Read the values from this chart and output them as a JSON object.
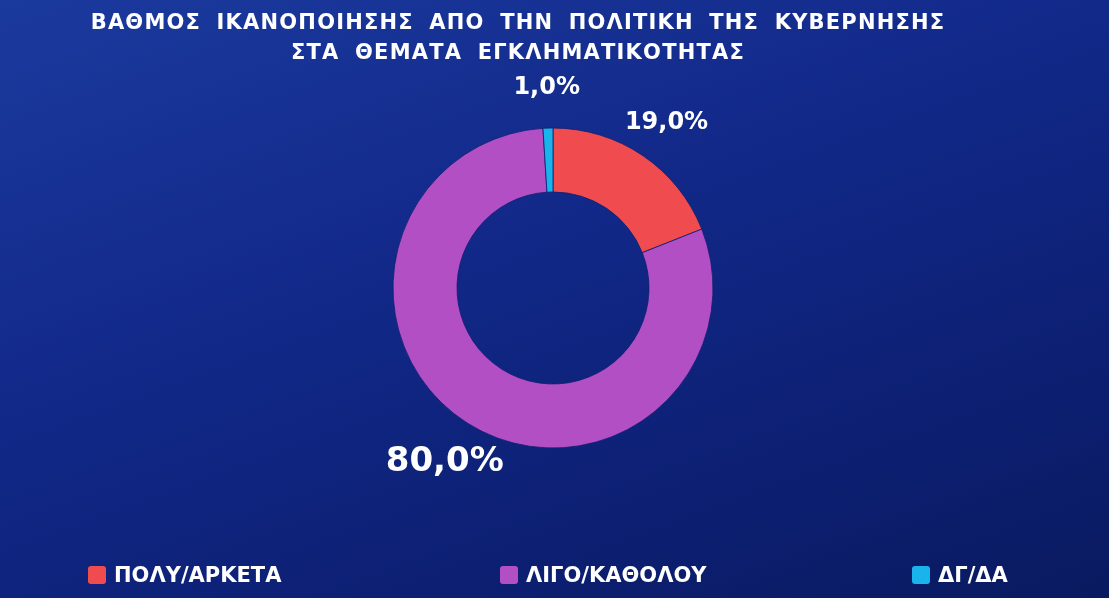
{
  "chart_data": {
    "type": "donut",
    "title": "ΒΑΘΜΟΣ ΙΚΑΝΟΠΟΙΗΣΗΣ ΑΠΟ ΤΗΝ ΠΟΛΙΤΙΚΗ ΤΗΣ ΚΥΒΕΡΝΗΣΗΣ ΣΤΑ ΘΕΜΑΤΑ ΕΓΚΛΗΜΑΤΙΚΟΤΗΤΑΣ",
    "categories": [
      "ΠΟΛΥ/ΑΡΚΕΤΑ",
      "ΛΙΓΟ/ΚΑΘΟΛΟΥ",
      "ΔΓ/ΔΑ"
    ],
    "values": [
      19,
      80,
      1
    ],
    "colors": [
      "#f04b4e",
      "#b24fc4",
      "#1ab4ec"
    ],
    "value_labels": [
      "19,0%",
      "80,0%",
      "1,0%"
    ],
    "legend": "bottom"
  }
}
